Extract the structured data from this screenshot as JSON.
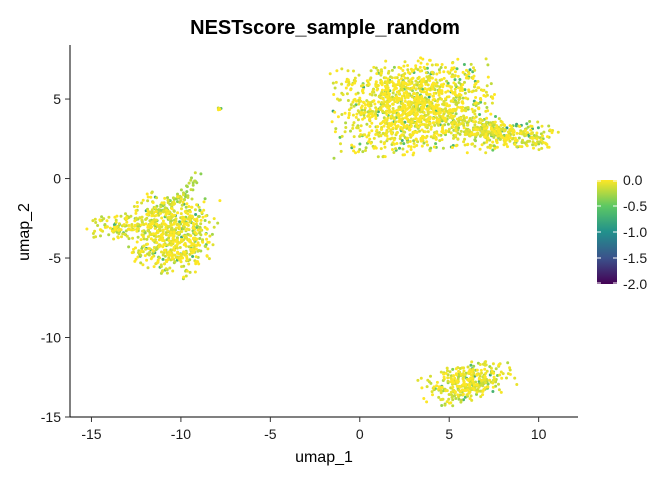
{
  "chart_data": {
    "type": "scatter",
    "title": "NESTscore_sample_random",
    "xlabel": "umap_1",
    "ylabel": "umap_2",
    "xlim": [
      -16.2,
      12.2
    ],
    "ylim": [
      -15.0,
      8.4
    ],
    "x_ticks": [
      -15,
      -10,
      -5,
      0,
      5,
      10
    ],
    "x_tick_labels": [
      "-15",
      "-10",
      "-5",
      "0",
      "5",
      "10"
    ],
    "y_ticks": [
      -15,
      -10,
      -5,
      0,
      5
    ],
    "y_tick_labels": [
      "-15",
      "-10",
      "-5",
      "0",
      "5"
    ],
    "grid": false,
    "legend": {
      "placement": "right",
      "type": "colorbar",
      "range": [
        -2.0,
        0.0
      ],
      "tick_values": [
        0.0,
        -0.5,
        -1.0,
        -1.5,
        -2.0
      ],
      "tick_labels": [
        "0.0",
        "-0.5",
        "-1.0",
        "-1.5",
        "-2.0"
      ],
      "palette": "viridis"
    },
    "clusters": [
      {
        "center": [
          3.0,
          4.5
        ],
        "points": 1400,
        "mean_score": -0.05
      },
      {
        "center": [
          8.5,
          2.8
        ],
        "points": 250,
        "mean_score": -0.08
      },
      {
        "center": [
          -10.5,
          -3.5
        ],
        "points": 650,
        "mean_score": -0.08
      },
      {
        "center": [
          -13.5,
          -3.0
        ],
        "points": 120,
        "mean_score": -0.1
      },
      {
        "center": [
          6.0,
          -12.8
        ],
        "points": 350,
        "mean_score": -0.1
      },
      {
        "center": [
          -7.9,
          4.4
        ],
        "points": 6,
        "mean_score": -0.05
      }
    ]
  },
  "colors": {
    "viridis": [
      "#440154",
      "#3b528b",
      "#21908c",
      "#5dc863",
      "#fde725"
    ]
  }
}
